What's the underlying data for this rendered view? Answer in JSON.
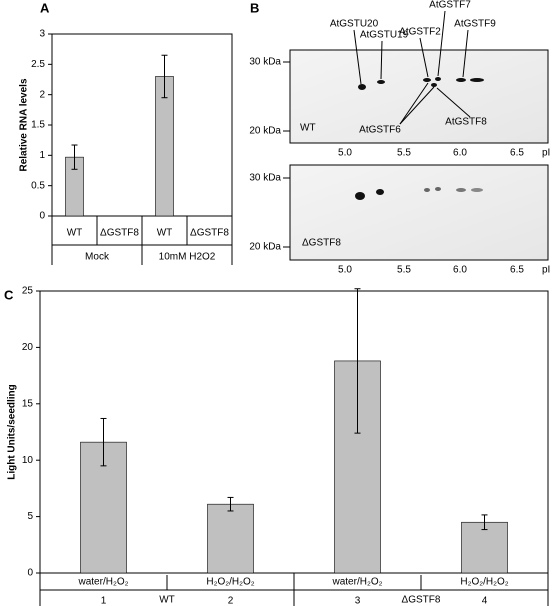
{
  "chart_data": [
    {
      "type": "bar",
      "panel_label": "A",
      "y_label": "Relative RNA levels",
      "categories": [
        "WT",
        "ΔGSTF8",
        "WT",
        "ΔGSTF8"
      ],
      "groups": [
        "Mock",
        "10mM H2O2"
      ],
      "values": [
        0.97,
        0,
        2.3,
        0
      ],
      "errors": [
        0.2,
        null,
        0.35,
        null
      ],
      "color": "#c0c0c0",
      "ylim": [
        0,
        3
      ],
      "yticks": [
        0,
        0.5,
        1,
        1.5,
        2,
        2.5,
        3
      ]
    },
    {
      "type": "bar",
      "panel_label": "C",
      "y_label": "Light Units/seedling",
      "categories": [
        "water/H₂O₂",
        "H₂O₂/H₂O₂",
        "water/H₂O₂",
        "H₂O₂/H₂O₂"
      ],
      "category_numbers": [
        "1",
        "2",
        "3",
        "4"
      ],
      "groups": [
        "WT",
        "ΔGSTF8"
      ],
      "values": [
        11.6,
        6.1,
        18.8,
        4.5
      ],
      "errors": [
        2.1,
        0.6,
        6.4,
        0.65
      ],
      "color": "#c0c0c0",
      "ylim": [
        0,
        25
      ],
      "yticks": [
        0,
        5,
        10,
        15,
        20,
        25
      ]
    }
  ],
  "gel_panel": {
    "panel_label": "B",
    "top": {
      "markers": [
        "30 kDa",
        "20 kDa"
      ],
      "genotype": "WT",
      "pI_ticks": [
        "5.0",
        "5.5",
        "6.0",
        "6.5"
      ],
      "pI_label": "pI",
      "proteins": [
        "AtGSTU20",
        "AtGSTU19",
        "AtGSTF2",
        "AtGSTF7",
        "AtGSTF9",
        "AtGSTF6",
        "AtGSTF8"
      ]
    },
    "bottom": {
      "markers": [
        "30 kDa",
        "20 kDa"
      ],
      "genotype": "ΔGSTF8",
      "pI_ticks": [
        "5.0",
        "5.5",
        "6.0",
        "6.5"
      ],
      "pI_label": "pI"
    }
  }
}
